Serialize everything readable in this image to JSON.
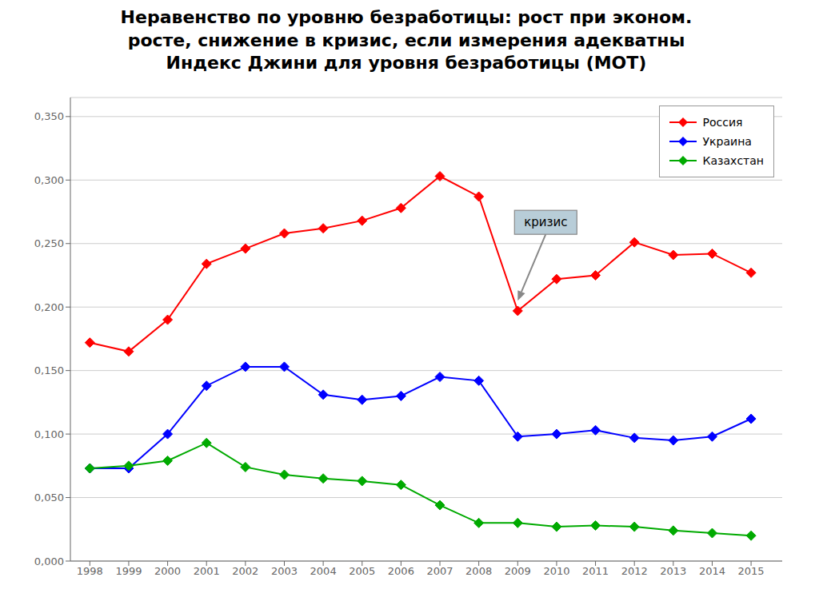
{
  "chart_data": {
    "type": "line",
    "title": "Неравенство по уровню безработицы: рост при эконом.\nросте, снижение в кризис, если измерения адекватны",
    "subtitle": "Индекс Джини для уровня безработицы (МОТ)",
    "x": [
      1998,
      1999,
      2000,
      2001,
      2002,
      2003,
      2004,
      2005,
      2006,
      2007,
      2008,
      2009,
      2010,
      2011,
      2012,
      2013,
      2014,
      2015
    ],
    "series": [
      {
        "name": "Россия",
        "color": "#FF0000",
        "marker": "diamond",
        "values": [
          0.172,
          0.165,
          0.19,
          0.234,
          0.246,
          0.258,
          0.262,
          0.268,
          0.278,
          0.303,
          0.287,
          0.197,
          0.222,
          0.225,
          0.251,
          0.241,
          0.242,
          0.227
        ]
      },
      {
        "name": "Украина",
        "color": "#0000FF",
        "marker": "diamond",
        "values": [
          0.073,
          0.073,
          0.1,
          0.138,
          0.153,
          0.153,
          0.131,
          0.127,
          0.13,
          0.145,
          0.142,
          0.098,
          0.1,
          0.103,
          0.097,
          0.095,
          0.098,
          0.112
        ]
      },
      {
        "name": "Казахстан",
        "color": "#00AA00",
        "marker": "diamond",
        "values": [
          0.073,
          0.075,
          0.079,
          0.093,
          0.074,
          0.068,
          0.065,
          0.063,
          0.06,
          0.044,
          0.03,
          0.03,
          0.027,
          0.028,
          0.027,
          0.024,
          0.022,
          0.02
        ]
      }
    ],
    "xlim": [
      1997.5,
      2015.8
    ],
    "xticks": [
      1998,
      1999,
      2000,
      2001,
      2002,
      2003,
      2004,
      2005,
      2006,
      2007,
      2008,
      2009,
      2010,
      2011,
      2012,
      2013,
      2014,
      2015
    ],
    "ylim": [
      0.0,
      0.365
    ],
    "yticks": [
      {
        "value": 0.0,
        "label": "0,000"
      },
      {
        "value": 0.05,
        "label": "0,050"
      },
      {
        "value": 0.1,
        "label": "0,100"
      },
      {
        "value": 0.15,
        "label": "0,150"
      },
      {
        "value": 0.2,
        "label": "0,200"
      },
      {
        "value": 0.25,
        "label": "0,250"
      },
      {
        "value": 0.3,
        "label": "0,300"
      },
      {
        "value": 0.35,
        "label": "0,350"
      }
    ],
    "grid": "y",
    "legend": "upper right",
    "annotations": [
      {
        "text": "кризис",
        "x": 2009,
        "y": 0.2
      }
    ]
  }
}
